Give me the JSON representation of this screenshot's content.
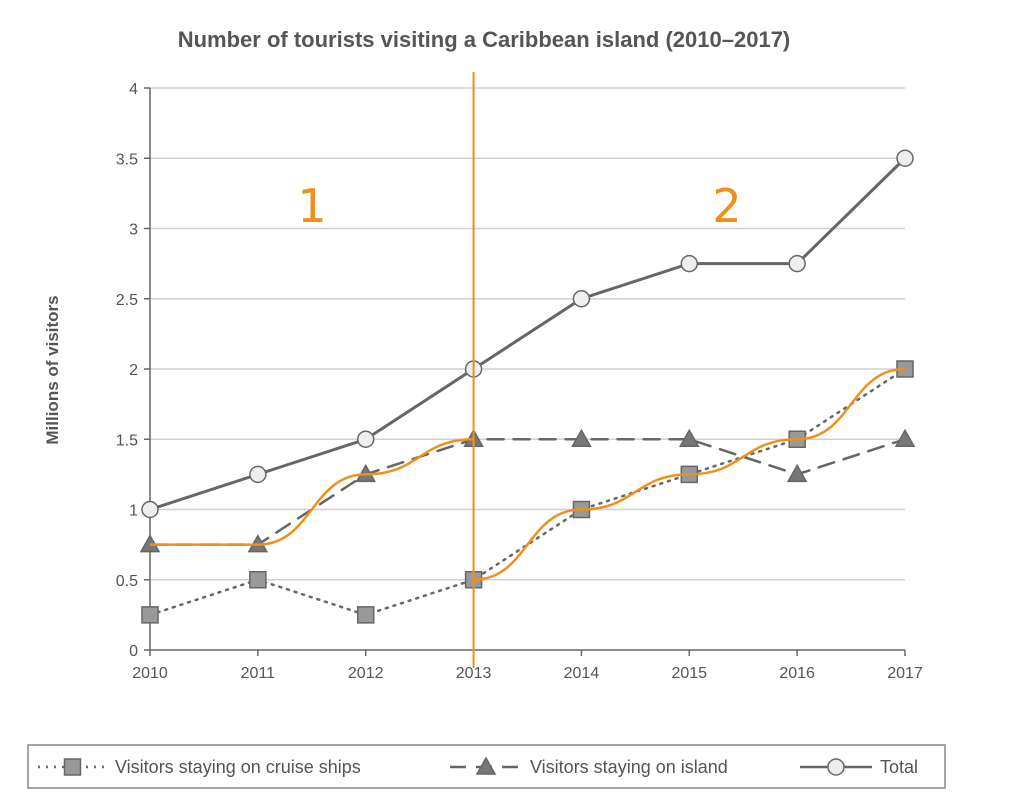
{
  "chart_data": {
    "type": "line",
    "title": "Number of tourists visiting a Caribbean island (2010–2017)",
    "xlabel": "",
    "ylabel": "Millions of visitors",
    "x": [
      2010,
      2011,
      2012,
      2013,
      2014,
      2015,
      2016,
      2017
    ],
    "ylim": [
      0,
      4
    ],
    "yticks": [
      "0",
      "0.5",
      "1",
      "1.5",
      "2",
      "2.5",
      "3",
      "3.5",
      "4"
    ],
    "grid": true,
    "legend_placement": "bottom",
    "series": [
      {
        "name": "Visitors staying on cruise ships",
        "values": [
          0.25,
          0.5,
          0.25,
          0.5,
          1,
          1.25,
          1.5,
          2
        ],
        "style": "dotted",
        "marker": "square",
        "color": "#666666"
      },
      {
        "name": "Visitors staying on island",
        "values": [
          0.75,
          0.75,
          1.25,
          1.5,
          1.5,
          1.5,
          1.25,
          1.5
        ],
        "style": "dashed",
        "marker": "triangle",
        "color": "#666666"
      },
      {
        "name": "Total",
        "values": [
          1,
          1.25,
          1.5,
          2,
          2.5,
          2.75,
          2.75,
          3.5
        ],
        "style": "solid",
        "marker": "circle",
        "color": "#666666"
      }
    ],
    "annotations": {
      "color": "#f0901a",
      "divider_x": 2013,
      "labels": [
        "1",
        "2"
      ]
    }
  }
}
